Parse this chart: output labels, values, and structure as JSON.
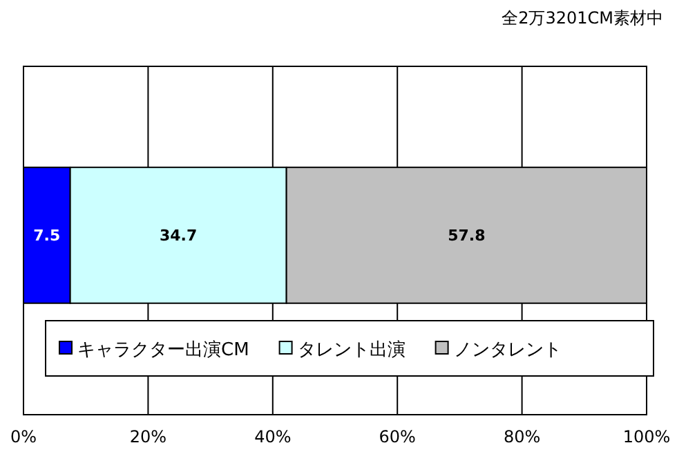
{
  "chart_data": {
    "type": "bar",
    "orientation": "horizontal",
    "stacked": true,
    "title": "全2万3201CM素材中",
    "categories": [
      null
    ],
    "series": [
      {
        "name": "キャラクター出演CM",
        "color": "#0000ff",
        "values": [
          7.5
        ]
      },
      {
        "name": "タレント出演",
        "color": "#ccffff",
        "values": [
          34.7
        ]
      },
      {
        "name": "ノンタレント",
        "color": "#c0c0c0",
        "values": [
          57.8
        ]
      }
    ],
    "xlim": [
      0,
      100
    ],
    "xticks": [
      {
        "value": 0,
        "label": "0%"
      },
      {
        "value": 20,
        "label": "20%"
      },
      {
        "value": 40,
        "label": "40%"
      },
      {
        "value": 60,
        "label": "60%"
      },
      {
        "value": 80,
        "label": "80%"
      },
      {
        "value": 100,
        "label": "100%"
      }
    ],
    "grid": "x",
    "legend": "bottom",
    "data_labels": true
  }
}
